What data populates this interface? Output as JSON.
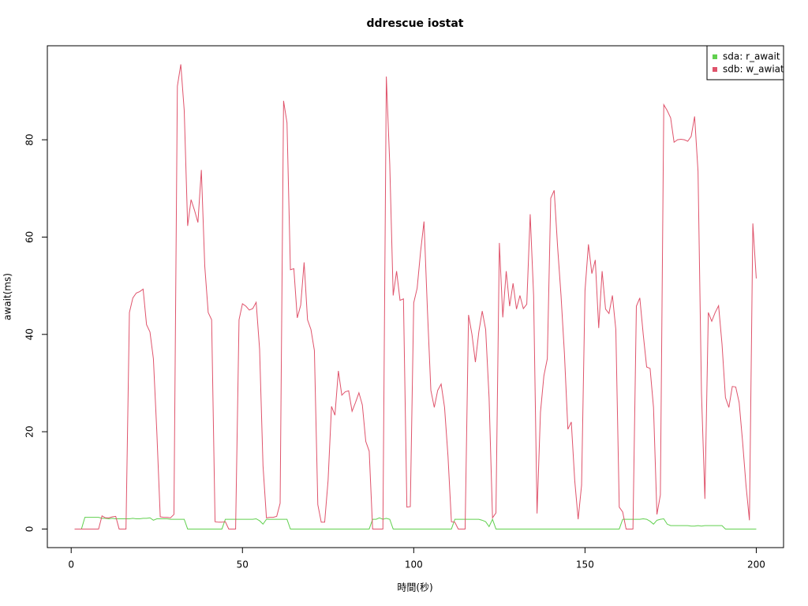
{
  "chart_data": {
    "type": "line",
    "title": "ddrescue iostat",
    "xlabel": "時間(秒)",
    "ylabel": "await(ms)",
    "xlim": [
      -6.96,
      207.96
    ],
    "ylim": [
      -3.82,
      99.32
    ],
    "xticks": [
      0,
      50,
      100,
      150,
      200
    ],
    "yticks": [
      0,
      20,
      40,
      60,
      80
    ],
    "legend": "topright",
    "x": [
      1,
      2,
      3,
      4,
      5,
      6,
      7,
      8,
      9,
      10,
      11,
      12,
      13,
      14,
      15,
      16,
      17,
      18,
      19,
      20,
      21,
      22,
      23,
      24,
      25,
      26,
      27,
      28,
      29,
      30,
      31,
      32,
      33,
      34,
      35,
      36,
      37,
      38,
      39,
      40,
      41,
      42,
      43,
      44,
      45,
      46,
      47,
      48,
      49,
      50,
      51,
      52,
      53,
      54,
      55,
      56,
      57,
      58,
      59,
      60,
      61,
      62,
      63,
      64,
      65,
      66,
      67,
      68,
      69,
      70,
      71,
      72,
      73,
      74,
      75,
      76,
      77,
      78,
      79,
      80,
      81,
      82,
      83,
      84,
      85,
      86,
      87,
      88,
      89,
      90,
      91,
      92,
      93,
      94,
      95,
      96,
      97,
      98,
      99,
      100,
      101,
      102,
      103,
      104,
      105,
      106,
      107,
      108,
      109,
      110,
      111,
      112,
      113,
      114,
      115,
      116,
      117,
      118,
      119,
      120,
      121,
      122,
      123,
      124,
      125,
      126,
      127,
      128,
      129,
      130,
      131,
      132,
      133,
      134,
      135,
      136,
      137,
      138,
      139,
      140,
      141,
      142,
      143,
      144,
      145,
      146,
      147,
      148,
      149,
      150,
      151,
      152,
      153,
      154,
      155,
      156,
      157,
      158,
      159,
      160,
      161,
      162,
      163,
      164,
      165,
      166,
      167,
      168,
      169,
      170,
      171,
      172,
      173,
      174,
      175,
      176,
      177,
      178,
      179,
      180,
      181,
      182,
      183,
      184,
      185,
      186,
      187,
      188,
      189,
      190,
      191,
      192,
      193,
      194,
      195,
      196,
      197,
      198,
      199,
      200
    ],
    "series": [
      {
        "name": "sda: r_await",
        "color": "#61d04f",
        "values": [
          0,
          0,
          0,
          2.4,
          2.4,
          2.4,
          2.4,
          2.4,
          2.2,
          2.2,
          2.1,
          2.2,
          2.1,
          2.1,
          2.1,
          2.1,
          2.1,
          2.2,
          2.1,
          2.1,
          2.2,
          2.2,
          2.3,
          1.8,
          2.1,
          2.1,
          2.1,
          2.1,
          2.0,
          2.0,
          2.0,
          2.0,
          2.0,
          0,
          0,
          0,
          0,
          0,
          0,
          0,
          0,
          0,
          0,
          0,
          2.0,
          2.0,
          2.0,
          2.0,
          2.0,
          2.0,
          2.0,
          2.0,
          2.0,
          2.1,
          1.7,
          1.0,
          2.0,
          2.0,
          2.0,
          2.0,
          2.0,
          2.0,
          2.0,
          0,
          0,
          0,
          0,
          0,
          0,
          0,
          0,
          0,
          0,
          0,
          0,
          0,
          0,
          0,
          0,
          0,
          0,
          0,
          0,
          0,
          0,
          0,
          0,
          2.0,
          2.0,
          2.3,
          2.0,
          2.2,
          2.0,
          0,
          0,
          0,
          0,
          0,
          0,
          0,
          0,
          0,
          0,
          0,
          0,
          0,
          0,
          0,
          0,
          0,
          0,
          2.0,
          2.0,
          2.0,
          2.0,
          2.0,
          2.0,
          2.0,
          2.0,
          1.8,
          1.5,
          0.5,
          2.0,
          0,
          0,
          0,
          0,
          0,
          0,
          0,
          0,
          0,
          0,
          0,
          0,
          0,
          0,
          0,
          0,
          0,
          0,
          0,
          0,
          0,
          0,
          0,
          0,
          0,
          0,
          0,
          0,
          0,
          0,
          0,
          0,
          0,
          0,
          0,
          0,
          0,
          2.0,
          2.0,
          2.0,
          2.0,
          2.0,
          2.0,
          2.1,
          2.0,
          1.6,
          1.0,
          1.8,
          2.0,
          2.1,
          1.0,
          0.7,
          0.7,
          0.7,
          0.7,
          0.7,
          0.7,
          0.6,
          0.6,
          0.7,
          0.6,
          0.7,
          0.7,
          0.7,
          0.7,
          0.7,
          0.7,
          0,
          0,
          0,
          0,
          0,
          0,
          0,
          0,
          0,
          0
        ]
      },
      {
        "name": "sdb: w_awiat",
        "color": "#df536b",
        "values": [
          0,
          0,
          0,
          0,
          0,
          0,
          0,
          0,
          2.7,
          2.3,
          2.3,
          2.5,
          2.6,
          0,
          0,
          0,
          44.5,
          47.5,
          48.5,
          48.8,
          49.3,
          42,
          40.5,
          35,
          20,
          2.5,
          2.4,
          2.4,
          2.3,
          3,
          91,
          95.5,
          86,
          62.3,
          67.7,
          65.5,
          63,
          73.8,
          54,
          44.5,
          43,
          1.5,
          1.4,
          1.4,
          1.5,
          0,
          0,
          0,
          43,
          46.3,
          45.8,
          45,
          45.3,
          46.6,
          37,
          13,
          2.3,
          2.4,
          2.4,
          2.6,
          5.3,
          88,
          83.5,
          53.3,
          53.5,
          43.4,
          46,
          54.8,
          43,
          41,
          36.7,
          5,
          1.4,
          1.4,
          10,
          25.2,
          23.4,
          32.5,
          27.5,
          28.2,
          28.4,
          24.2,
          26,
          28,
          25.5,
          18,
          16,
          0,
          0,
          0,
          0,
          93,
          75,
          48,
          53,
          47,
          47.3,
          4.5,
          4.6,
          46.5,
          49.5,
          57,
          63.2,
          45,
          28.5,
          25,
          28.5,
          29.8,
          25,
          15,
          1.5,
          1.4,
          0,
          0,
          0,
          44,
          40,
          34.3,
          40.5,
          44.8,
          41,
          27,
          2.3,
          3.3,
          58.8,
          43.5,
          53,
          45.8,
          50.5,
          45.2,
          48,
          45.3,
          46.2,
          64.7,
          48,
          3.2,
          24,
          31.5,
          35,
          68,
          69.6,
          58,
          48,
          36,
          20.5,
          22,
          10,
          2,
          9,
          49,
          58.5,
          52.5,
          55.3,
          41.3,
          53,
          45.2,
          44.3,
          48,
          41,
          4.5,
          3.5,
          0,
          0,
          0,
          45.8,
          47.5,
          40,
          33.3,
          33,
          25,
          3,
          7,
          87.2,
          86,
          84.5,
          79.5,
          80,
          80.1,
          80,
          79.7,
          80.7,
          84.8,
          73.5,
          28,
          6.2,
          44.5,
          42.7,
          44.5,
          45.9,
          38,
          27,
          25,
          29.3,
          29.2,
          26,
          18,
          9,
          1.8,
          62.8,
          51.5
        ]
      }
    ]
  }
}
